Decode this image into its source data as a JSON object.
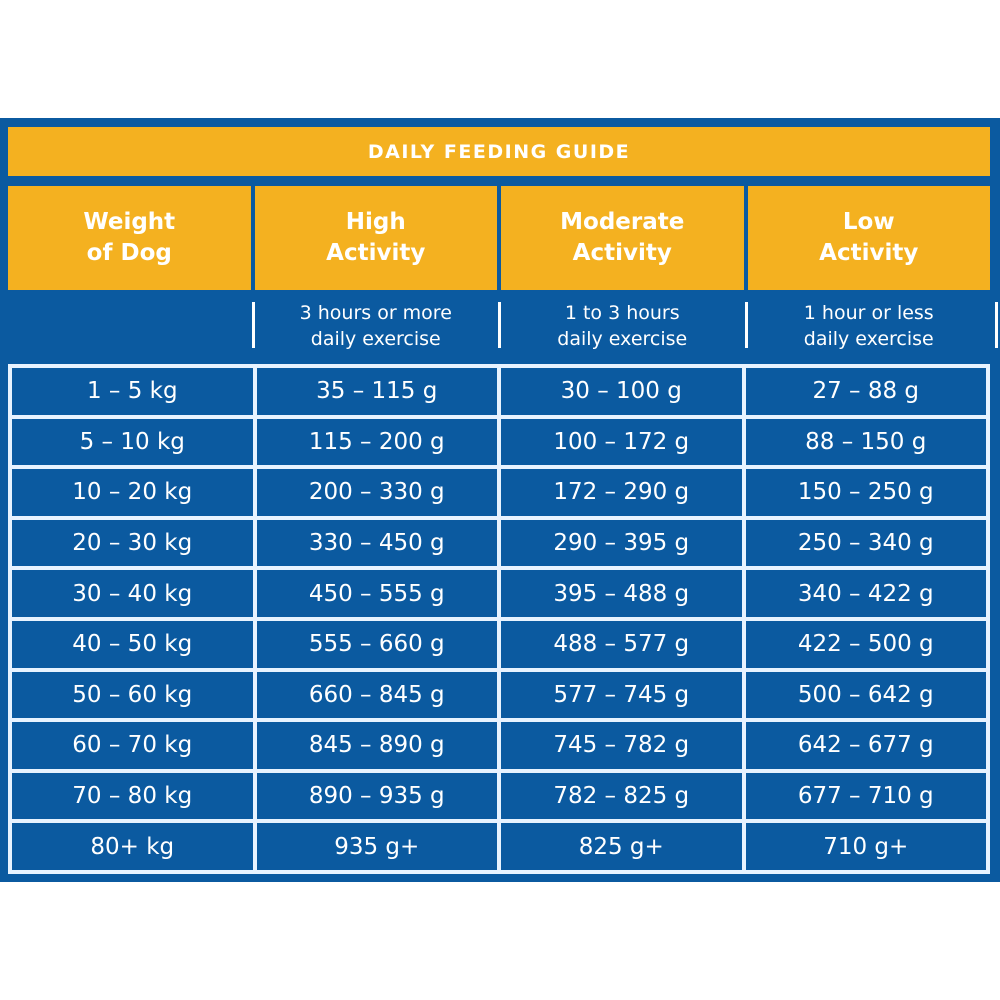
{
  "title": "DAILY FEEDING GUIDE",
  "colors": {
    "panel_blue": "#0b5aa0",
    "header_yellow": "#f4b120",
    "text_white": "#ffffff",
    "grid_line": "#e8f3ff"
  },
  "columns": [
    {
      "label_line1": "Weight",
      "label_line2": "of Dog",
      "subtitle_line1": "",
      "subtitle_line2": ""
    },
    {
      "label_line1": "High",
      "label_line2": "Activity",
      "subtitle_line1": "3 hours or more",
      "subtitle_line2": "daily exercise"
    },
    {
      "label_line1": "Moderate",
      "label_line2": "Activity",
      "subtitle_line1": "1 to 3 hours",
      "subtitle_line2": "daily exercise"
    },
    {
      "label_line1": "Low",
      "label_line2": "Activity",
      "subtitle_line1": "1 hour or less",
      "subtitle_line2": "daily exercise"
    }
  ],
  "rows": [
    [
      "1 – 5 kg",
      "35 – 115 g",
      "30 – 100 g",
      "27 – 88 g"
    ],
    [
      "5 – 10 kg",
      "115 – 200 g",
      "100 – 172 g",
      "88 – 150 g"
    ],
    [
      "10 – 20 kg",
      "200 – 330 g",
      "172 – 290 g",
      "150 – 250 g"
    ],
    [
      "20 – 30 kg",
      "330 – 450 g",
      "290 – 395 g",
      "250 – 340 g"
    ],
    [
      "30 – 40 kg",
      "450 – 555 g",
      "395 – 488 g",
      "340 – 422 g"
    ],
    [
      "40 – 50 kg",
      "555 – 660 g",
      "488 – 577 g",
      "422 – 500 g"
    ],
    [
      "50 – 60 kg",
      "660 – 845 g",
      "577 – 745 g",
      "500 – 642 g"
    ],
    [
      "60 – 70 kg",
      "845 – 890 g",
      "745 – 782 g",
      "642 – 677 g"
    ],
    [
      "70 – 80 kg",
      "890 – 935 g",
      "782 – 825 g",
      "677 – 710 g"
    ],
    [
      "80+ kg",
      "935 g+",
      "825 g+",
      "710 g+"
    ]
  ]
}
